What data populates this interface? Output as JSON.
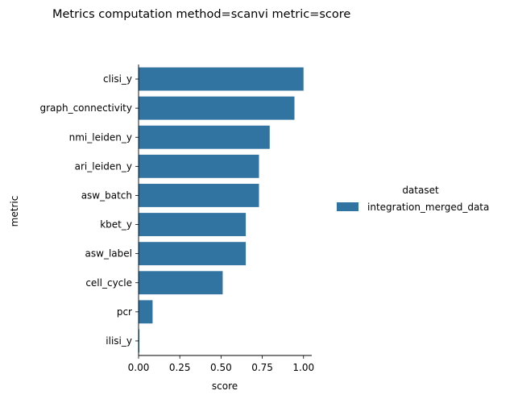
{
  "chart_data": {
    "type": "bar",
    "orientation": "horizontal",
    "title": "Metrics computation method=scanvi metric=score",
    "xlabel": "score",
    "ylabel": "metric",
    "xlim": [
      0,
      1.05
    ],
    "xticks": [
      0.0,
      0.25,
      0.5,
      0.75,
      1.0
    ],
    "xtick_labels": [
      "0.00",
      "0.25",
      "0.50",
      "0.75",
      "1.00"
    ],
    "categories": [
      "clisi_y",
      "graph_connectivity",
      "nmi_leiden_y",
      "ari_leiden_y",
      "asw_batch",
      "kbet_y",
      "asw_label",
      "cell_cycle",
      "pcr",
      "ilisi_y"
    ],
    "series": [
      {
        "name": "integration_merged_data",
        "color": "#3274a1",
        "values": [
          1.0,
          0.945,
          0.795,
          0.73,
          0.73,
          0.65,
          0.65,
          0.51,
          0.085,
          0.005
        ]
      }
    ],
    "legend": {
      "title": "dataset",
      "placement": "right"
    },
    "grid": false
  }
}
